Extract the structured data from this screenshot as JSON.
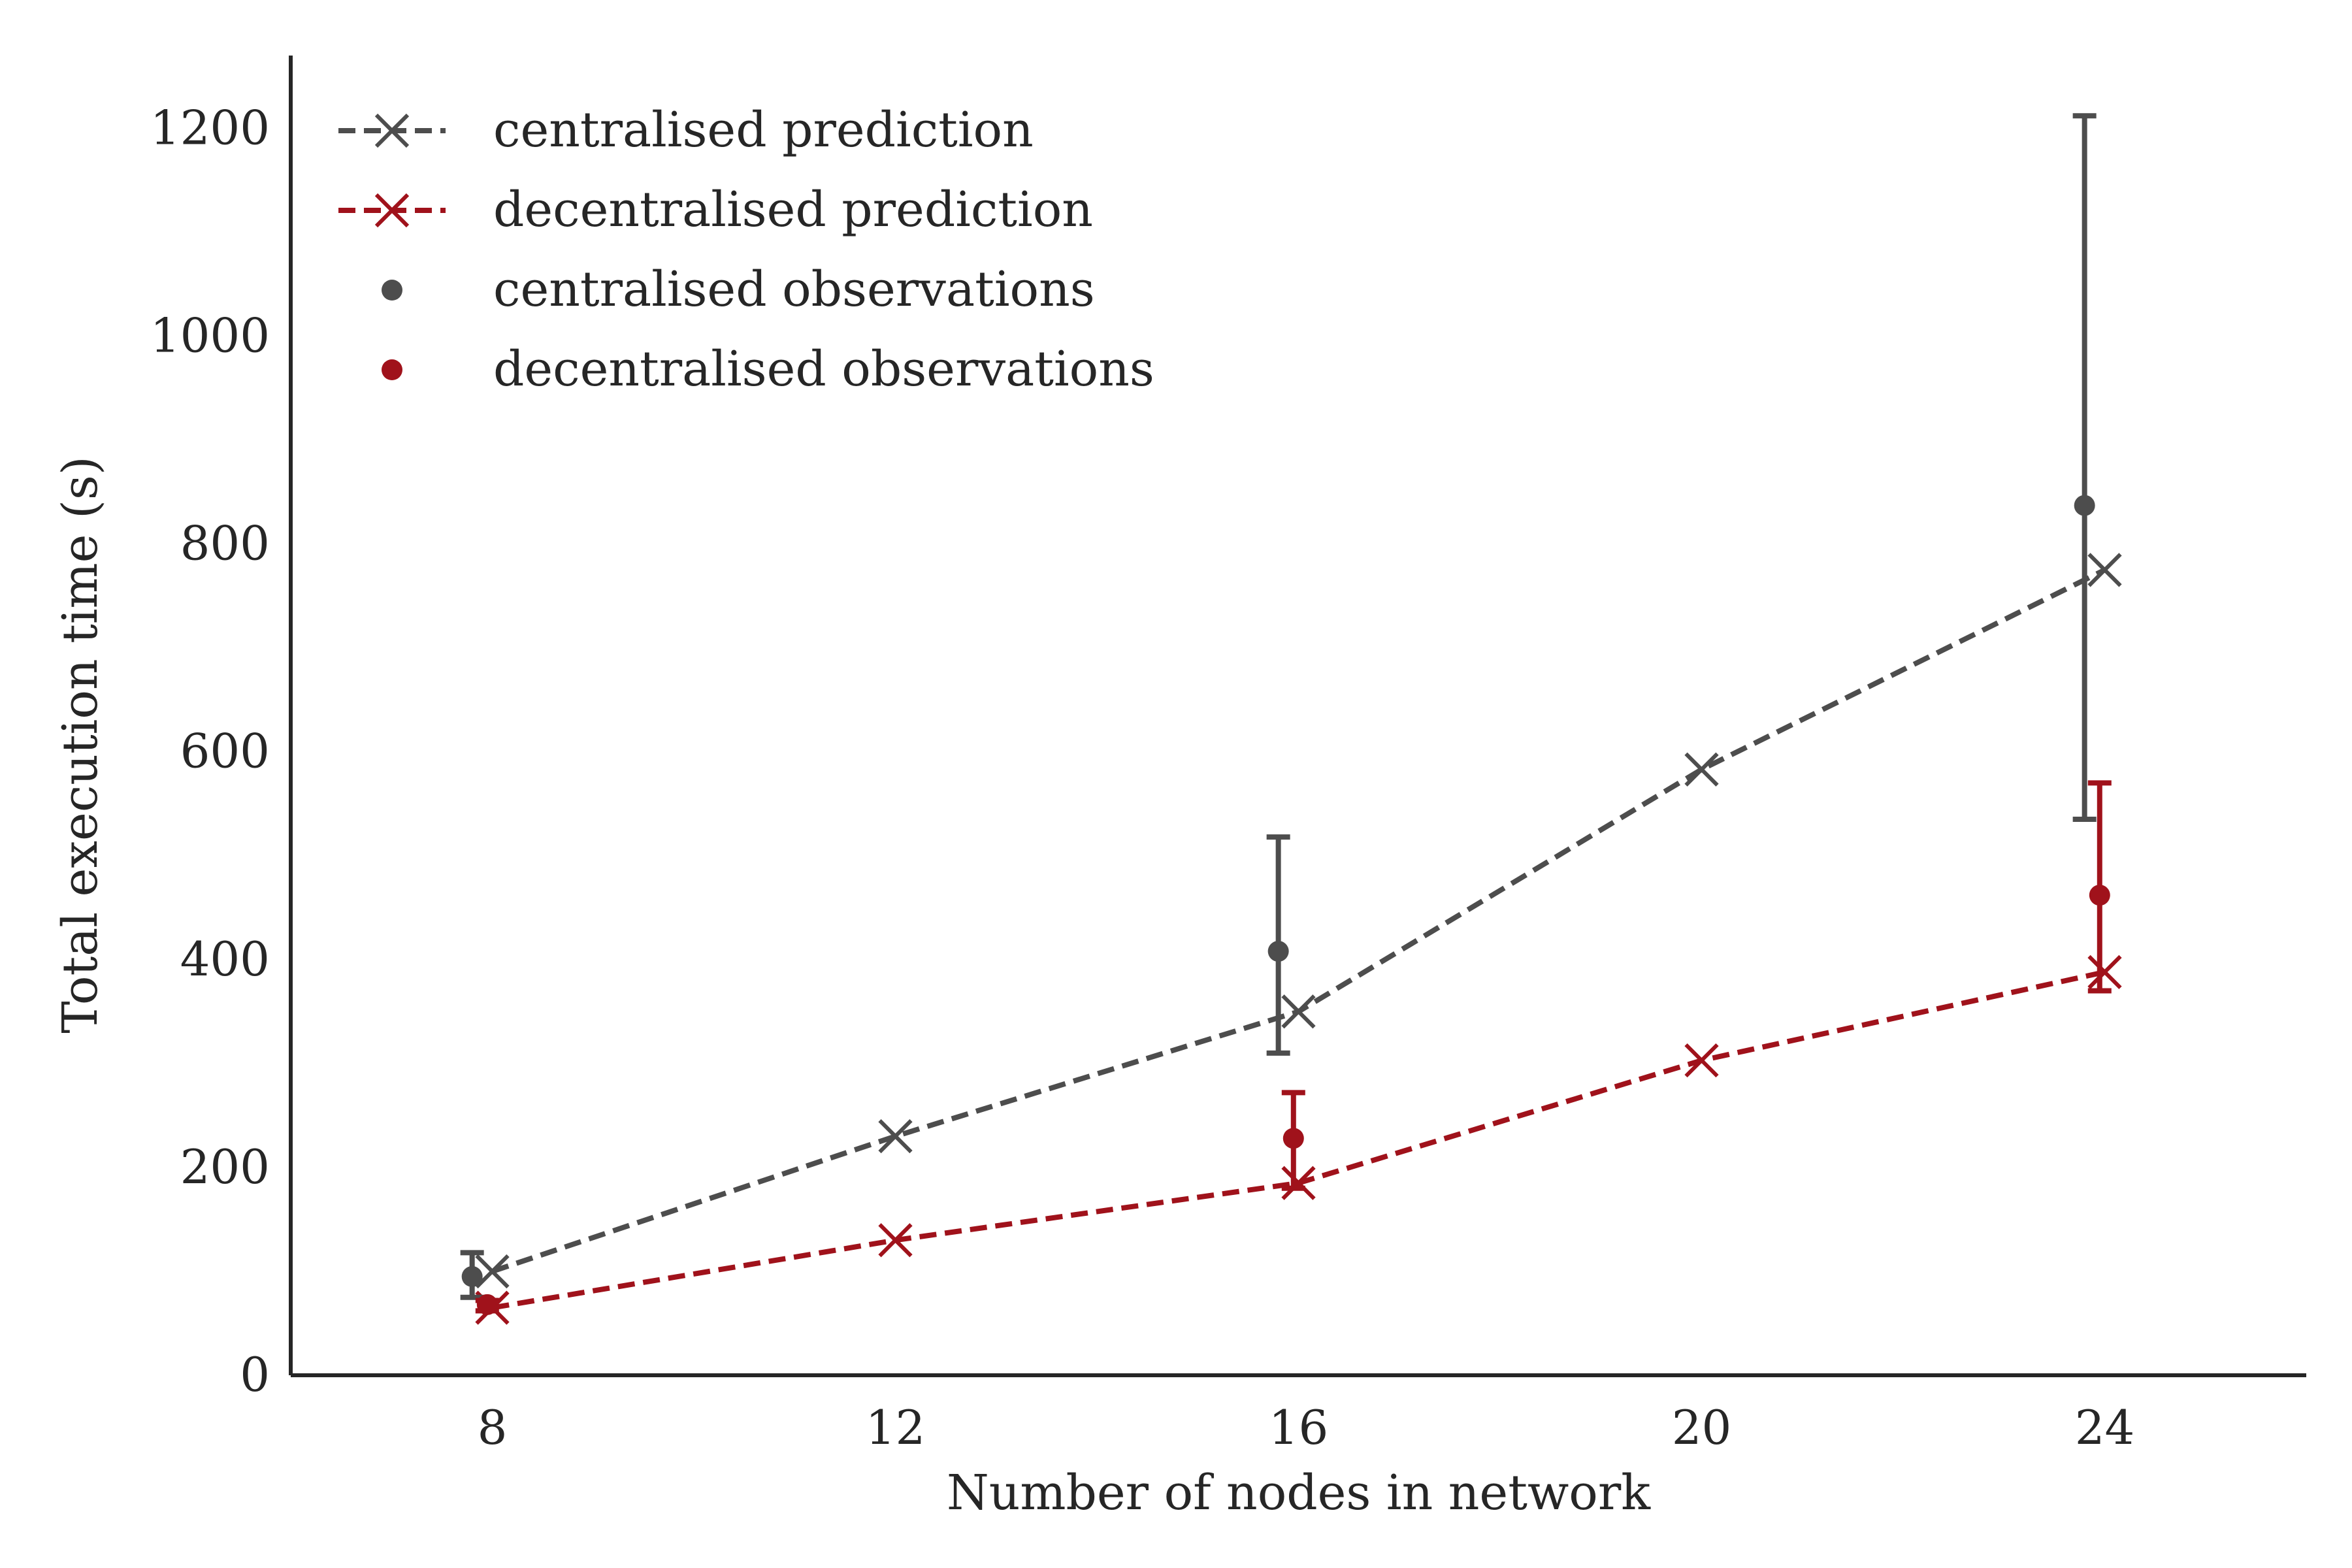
{
  "chart_data": {
    "type": "line",
    "xlabel": "Number of nodes in network",
    "ylabel": "Total execution time (s)",
    "xlim": [
      6.0,
      26.0
    ],
    "ylim": [
      0,
      1270
    ],
    "xticks": [
      8,
      12,
      16,
      20,
      24
    ],
    "yticks": [
      0,
      200,
      400,
      600,
      800,
      1000,
      1200
    ],
    "grid": false,
    "legend_position": "top-left",
    "colors": {
      "centralised": "#4d4d4d",
      "decentralised": "#a0121b"
    },
    "series": [
      {
        "name": "centralised prediction",
        "kind": "line",
        "style": "dashed",
        "marker": "x",
        "color": "#4d4d4d",
        "x": [
          8,
          12,
          16,
          20,
          24
        ],
        "y": [
          100,
          230,
          350,
          583,
          775
        ]
      },
      {
        "name": "decentralised prediction",
        "kind": "line",
        "style": "dashed",
        "marker": "x",
        "color": "#a0121b",
        "x": [
          8,
          12,
          16,
          20,
          24
        ],
        "y": [
          65,
          130,
          185,
          303,
          388
        ]
      },
      {
        "name": "centralised observations",
        "kind": "scatter",
        "marker": "dot",
        "color": "#4d4d4d",
        "x": [
          7.8,
          15.8,
          23.8
        ],
        "y": [
          95,
          408,
          837
        ],
        "err_low": [
          75,
          310,
          535
        ],
        "err_high": [
          118,
          518,
          1212
        ]
      },
      {
        "name": "decentralised observations",
        "kind": "scatter",
        "marker": "dot",
        "color": "#a0121b",
        "x": [
          7.95,
          15.95,
          23.95
        ],
        "y": [
          68,
          228,
          462
        ],
        "err_low": [
          62,
          180,
          370
        ],
        "err_high": [
          72,
          272,
          570
        ]
      }
    ]
  }
}
